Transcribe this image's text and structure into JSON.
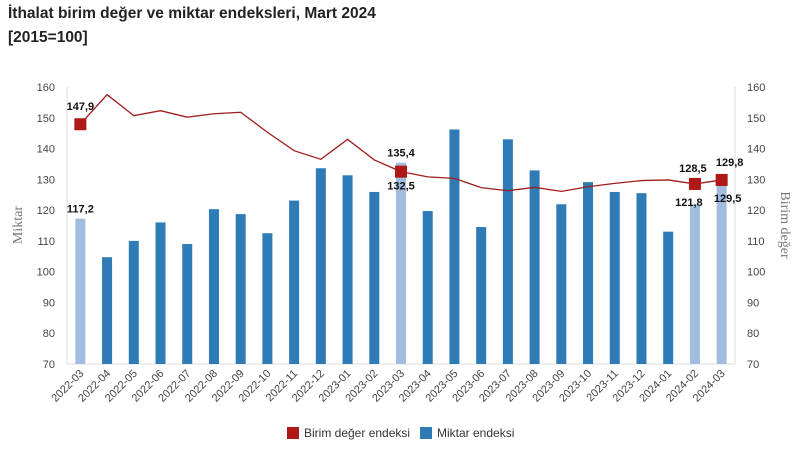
{
  "chart_data": {
    "type": "bar+line",
    "title": "İthalat birim değer ve miktar endeksleri, Mart 2024",
    "subtitle": "[2015=100]",
    "ylabel_left": "Miktar",
    "ylabel_right": "Birim değer",
    "ylim": [
      70,
      160
    ],
    "yticks": [
      70,
      80,
      90,
      100,
      110,
      120,
      130,
      140,
      150,
      160
    ],
    "categories": [
      "2022-03",
      "2022-04",
      "2022-05",
      "2022-06",
      "2022-07",
      "2022-08",
      "2022-09",
      "2022-10",
      "2022-11",
      "2022-12",
      "2023-01",
      "2023-02",
      "2023-03",
      "2023-04",
      "2023-05",
      "2023-06",
      "2023-07",
      "2023-08",
      "2023-09",
      "2023-10",
      "2023-11",
      "2023-12",
      "2024-01",
      "2024-02",
      "2024-03"
    ],
    "series": [
      {
        "name": "Miktar endeksi",
        "type": "bar",
        "axis": "left",
        "color": "#2e7bb6",
        "highlight_color": "#a2bcdf",
        "values": [
          117.2,
          104.7,
          110.0,
          116.0,
          109.0,
          120.3,
          118.7,
          112.5,
          123.1,
          133.6,
          131.3,
          125.9,
          135.4,
          119.7,
          146.2,
          114.5,
          143.0,
          132.9,
          121.9,
          129.1,
          125.9,
          125.5,
          113.0,
          121.8,
          129.5
        ]
      },
      {
        "name": "Birim değer endeksi",
        "type": "line",
        "axis": "right",
        "color": "#a01c1c",
        "marker_color": "#b01717",
        "values": [
          147.9,
          157.5,
          150.7,
          152.3,
          150.2,
          151.3,
          151.8,
          145.3,
          139.3,
          136.5,
          143.0,
          136.3,
          132.5,
          130.8,
          130.3,
          127.3,
          126.3,
          127.4,
          126.1,
          127.6,
          128.7,
          129.6,
          129.8,
          128.5,
          129.8
        ]
      }
    ],
    "highlighted_indices": [
      0,
      12,
      23,
      24
    ],
    "bar_labels": {
      "0": "117,2",
      "12": "135,4",
      "23": "121,8",
      "24": "129,5"
    },
    "line_labels": {
      "0": "147,9",
      "12": "132,5",
      "23": "128,5",
      "24": "129,8"
    },
    "legend": [
      "Birim değer endeksi",
      "Miktar endeksi"
    ],
    "legend_position": "bottom",
    "grid": false
  }
}
